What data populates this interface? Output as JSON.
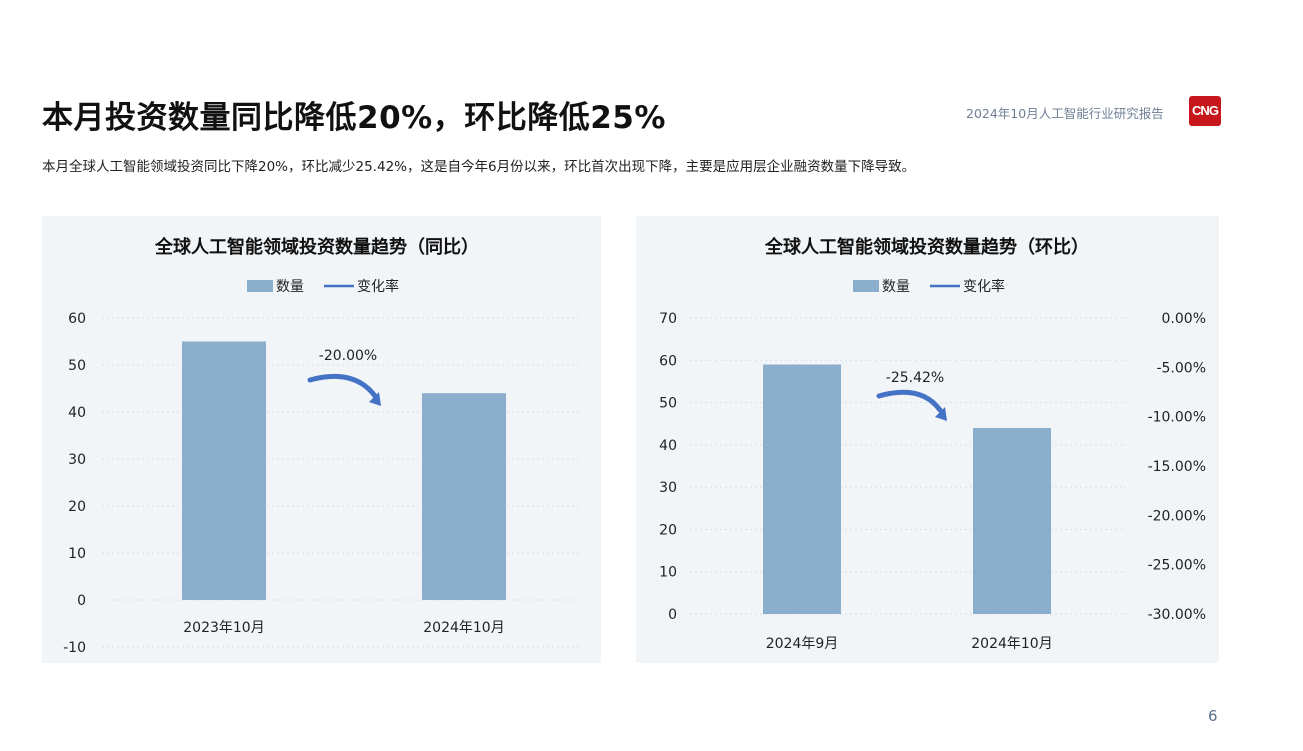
{
  "header": {
    "title": "本月投资数量同比降低20%，环比降低25%",
    "report_name": "2024年10月人工智能行业研究报告",
    "logo_text": "CNG",
    "subtitle": "本月全球人工智能领域投资同比下降20%，环比减少25.42%，这是自今年6月份以来，环比首次出现下降，主要是应用层企业融资数量下降导致。"
  },
  "page_number": "6",
  "colors": {
    "bar": "#8aaecb",
    "arrow": "#4472c4",
    "panel_bg": "#f2f5f8"
  },
  "chart_data": [
    {
      "type": "bar",
      "title": "全球人工智能领域投资数量趋势（同比）",
      "legend": {
        "bar": "数量",
        "line": "变化率",
        "position": "top"
      },
      "categories": [
        "2023年10月",
        "2024年10月"
      ],
      "values": [
        55,
        44
      ],
      "ylim": [
        -10,
        60
      ],
      "yticks": [
        60,
        50,
        40,
        30,
        20,
        10,
        0,
        -10
      ],
      "grid": true,
      "annotation": "-20.00%"
    },
    {
      "type": "bar",
      "title": "全球人工智能领域投资数量趋势（环比）",
      "legend": {
        "bar": "数量",
        "line": "变化率",
        "position": "top"
      },
      "categories": [
        "2024年9月",
        "2024年10月"
      ],
      "values": [
        59,
        44
      ],
      "ylim": [
        0,
        70
      ],
      "yticks": [
        70,
        60,
        50,
        40,
        30,
        20,
        10,
        0
      ],
      "y2ticks": [
        "0.00%",
        "-5.00%",
        "-10.00%",
        "-15.00%",
        "-20.00%",
        "-25.00%",
        "-30.00%"
      ],
      "grid": true,
      "annotation": "-25.42%"
    }
  ]
}
